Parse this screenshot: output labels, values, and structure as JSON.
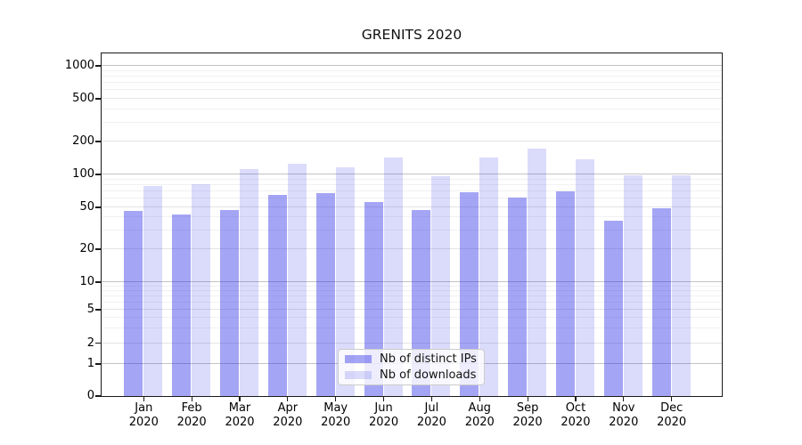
{
  "title": "GRENITS 2020",
  "chart_data": {
    "type": "bar",
    "title": "GRENITS 2020",
    "categories": [
      "Jan",
      "Feb",
      "Mar",
      "Apr",
      "May",
      "Jun",
      "Jul",
      "Aug",
      "Sep",
      "Oct",
      "Nov",
      "Dec"
    ],
    "category_year": "2020",
    "series": [
      {
        "name": "Nb of distinct IPs",
        "color": "rgba(40,40,230,0.42)",
        "color_hex_on_white": "#a5a5f5",
        "values": [
          46,
          42,
          47,
          65,
          67,
          55,
          47,
          68,
          61,
          69,
          37,
          49
        ]
      },
      {
        "name": "Nb of downloads",
        "color": "rgba(40,40,230,0.17)",
        "color_hex_on_white": "#dadafb",
        "values": [
          78,
          81,
          110,
          123,
          115,
          142,
          95,
          142,
          171,
          135,
          97,
          97
        ]
      }
    ],
    "y_axis": {
      "scale": "symlog",
      "ticks": [
        0,
        1,
        2,
        5,
        10,
        20,
        50,
        100,
        200,
        500,
        1000
      ]
    },
    "x_axis": {
      "tick_format": "month over year, two lines"
    },
    "legend": {
      "position": "lower center",
      "entries": [
        "Nb of distinct IPs",
        "Nb of downloads"
      ]
    },
    "grid": true
  }
}
